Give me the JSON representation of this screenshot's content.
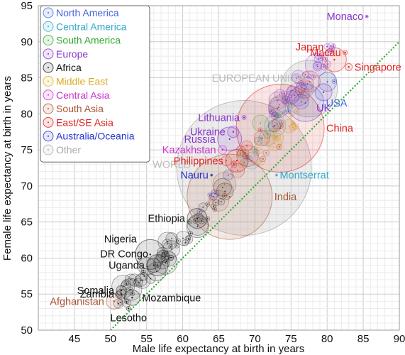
{
  "chart_data": {
    "type": "scatter",
    "title": "",
    "xlabel": "Male life expectancy at birth in years",
    "ylabel": "Female life expectancy at birth in years",
    "xlim": [
      40,
      90
    ],
    "ylim": [
      50,
      95
    ],
    "x_ticks": [
      45,
      50,
      55,
      60,
      65,
      70,
      75,
      80,
      85,
      90
    ],
    "y_ticks": [
      50,
      55,
      60,
      65,
      70,
      75,
      80,
      85,
      90,
      95
    ],
    "grid": true,
    "legend_position": "top-left",
    "reference_line": {
      "type": "y=x",
      "color": "#22aa22",
      "style": "dotted"
    },
    "series": [
      {
        "name": "North America",
        "color": "#4466dd"
      },
      {
        "name": "Central America",
        "color": "#33aacc"
      },
      {
        "name": "South America",
        "color": "#33aa33"
      },
      {
        "name": "Europe",
        "color": "#8833cc"
      },
      {
        "name": "Africa",
        "color": "#222222"
      },
      {
        "name": "Middle East",
        "color": "#ddaa22"
      },
      {
        "name": "Central Asia",
        "color": "#cc33cc"
      },
      {
        "name": "South Asia",
        "color": "#aa5533"
      },
      {
        "name": "East/SE Asia",
        "color": "#dd2222"
      },
      {
        "name": "Australia/Oceania",
        "color": "#2233cc"
      },
      {
        "name": "Other",
        "color": "#aaaaaa"
      }
    ],
    "points": [
      {
        "label": "Monaco",
        "x": 85.5,
        "y": 93.5,
        "region": "Europe",
        "label_pos": "left",
        "r": 2
      },
      {
        "label": "Japan",
        "x": 81.0,
        "y": 87.5,
        "region": "East/SE Asia",
        "label_pos": "upper-left",
        "r": 17
      },
      {
        "label": "Macau",
        "x": 82.5,
        "y": 88.5,
        "region": "East/SE Asia",
        "label_pos": "left",
        "r": 3
      },
      {
        "label": "Singapore",
        "x": 83.0,
        "y": 86.5,
        "region": "East/SE Asia",
        "label_pos": "right",
        "r": 5
      },
      {
        "label": "UK",
        "x": 79.5,
        "y": 83.0,
        "region": "Europe",
        "label_pos": "below",
        "r": 12
      },
      {
        "label": "USA",
        "x": 77.0,
        "y": 81.5,
        "region": "North America",
        "label_pos": "right",
        "r": 26
      },
      {
        "label": "China",
        "x": 73.5,
        "y": 78.0,
        "region": "East/SE Asia",
        "label_pos": "right",
        "r": 62
      },
      {
        "label": "India",
        "x": 66.5,
        "y": 68.5,
        "region": "South Asia",
        "label_pos": "right",
        "r": 60
      },
      {
        "label": "Lithuania",
        "x": 68.5,
        "y": 79.5,
        "region": "Europe",
        "label_pos": "left",
        "r": 3
      },
      {
        "label": "Ukraine",
        "x": 67.0,
        "y": 77.5,
        "region": "Europe",
        "label_pos": "left",
        "r": 8
      },
      {
        "label": "Russia",
        "x": 66.5,
        "y": 76.5,
        "region": "Europe",
        "label_pos": "left",
        "r": 17
      },
      {
        "label": "Kazakhstan",
        "x": 65.5,
        "y": 75.0,
        "region": "Central Asia",
        "label_pos": "left",
        "r": 6
      },
      {
        "label": "Philippines",
        "x": 67.5,
        "y": 73.5,
        "region": "East/SE Asia",
        "label_pos": "left",
        "r": 16
      },
      {
        "label": "Nauru",
        "x": 64.0,
        "y": 71.5,
        "region": "Australia/Oceania",
        "label_pos": "left",
        "r": 1.5
      },
      {
        "label": "Montserrat",
        "x": 73.0,
        "y": 71.5,
        "region": "Central America",
        "label_pos": "right",
        "r": 1.5
      },
      {
        "label": "Ethiopia",
        "x": 62.0,
        "y": 65.5,
        "region": "Africa",
        "label_pos": "left",
        "r": 14
      },
      {
        "label": "Nigeria",
        "x": 55.5,
        "y": 60.5,
        "region": "Africa",
        "label_pos": "upper-left",
        "r": 21
      },
      {
        "label": "DR Congo",
        "x": 56.5,
        "y": 59.0,
        "region": "Africa",
        "label_pos": "upper-left",
        "r": 15
      },
      {
        "label": "Uganda",
        "x": 56.0,
        "y": 59.0,
        "region": "Africa",
        "label_pos": "left",
        "r": 10
      },
      {
        "label": "Somalia",
        "x": 51.5,
        "y": 55.5,
        "region": "Africa",
        "label_pos": "left",
        "r": 7
      },
      {
        "label": "Zambia",
        "x": 51.5,
        "y": 55.0,
        "region": "Africa",
        "label_pos": "left",
        "r": 7
      },
      {
        "label": "Afghanistan",
        "x": 50.5,
        "y": 54.0,
        "region": "South Asia",
        "label_pos": "left",
        "r": 11
      },
      {
        "label": "Mozambique",
        "x": 53.0,
        "y": 54.5,
        "region": "Africa",
        "label_pos": "right",
        "r": 11
      },
      {
        "label": "Lesotho",
        "x": 52.5,
        "y": 53.0,
        "region": "Africa",
        "label_pos": "below",
        "r": 3
      }
    ],
    "aggregates": [
      {
        "label": "WORLD",
        "x": 68.5,
        "y": 72.5,
        "r": 95,
        "color": "#aaaaaa",
        "label_color": "#bbbbbb"
      },
      {
        "label": "EUROPEAN UNION",
        "x": 77.5,
        "y": 83.5,
        "r": 40,
        "color": "#aaaaaa",
        "label_color": "#bbbbbb"
      }
    ]
  }
}
